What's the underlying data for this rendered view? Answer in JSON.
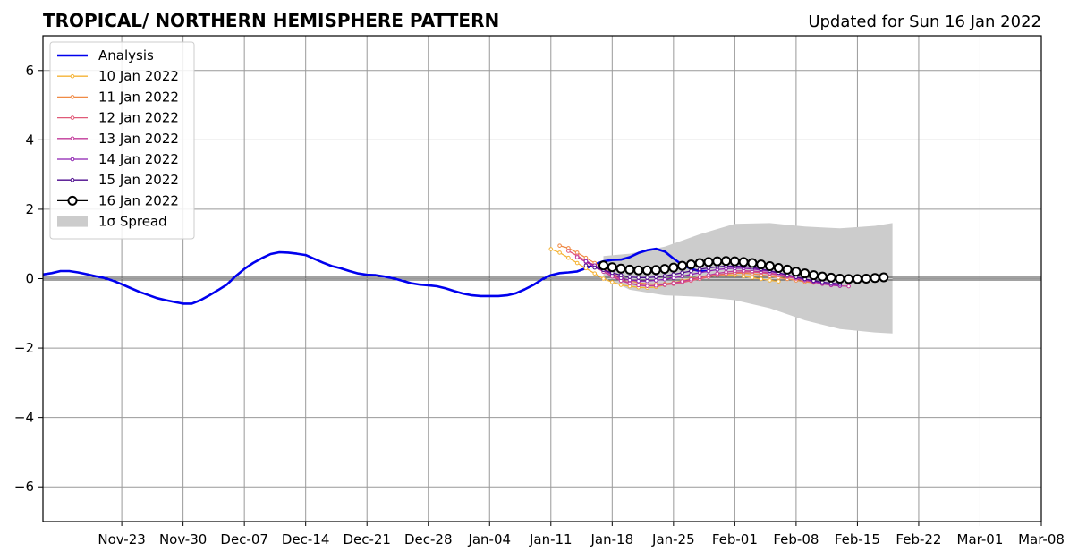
{
  "chart_data": {
    "type": "line",
    "title": "TROPICAL/ NORTHERN HEMISPHERE PATTERN",
    "subtitle": "Updated for Sun 16 Jan 2022",
    "xlabel": "",
    "ylabel": "",
    "xlim": [
      "2022-11-14",
      "2023-03-08"
    ],
    "ylim": [
      -7,
      7
    ],
    "grid": true,
    "legend_position": "top-left",
    "x_ticks": [
      "2022-11-23",
      "2022-11-30",
      "2022-12-07",
      "2022-12-14",
      "2022-12-21",
      "2022-12-28",
      "2023-01-04",
      "2023-01-11",
      "2023-01-18",
      "2023-01-25",
      "2023-02-01",
      "2023-02-08",
      "2023-02-15",
      "2023-02-22",
      "2023-03-01",
      "2023-03-08"
    ],
    "x_tick_labels": [
      "Nov-23",
      "Nov-30",
      "Dec-07",
      "Dec-14",
      "Dec-21",
      "Dec-28",
      "Jan-04",
      "Jan-11",
      "Jan-18",
      "Jan-25",
      "Feb-01",
      "Feb-08",
      "Feb-15",
      "Feb-22",
      "Mar-01",
      "Mar-08"
    ],
    "y_ticks": [
      -6,
      -4,
      -2,
      0,
      2,
      4,
      6
    ],
    "y_tick_labels": [
      "−6",
      "−4",
      "−2",
      "0",
      "2",
      "4",
      "6"
    ],
    "analysis": {
      "name": "Analysis",
      "color": "#0000ee",
      "start": "2022-11-14",
      "values": [
        0.12,
        0.16,
        0.22,
        0.22,
        0.18,
        0.13,
        0.07,
        0.02,
        -0.06,
        -0.16,
        -0.27,
        -0.38,
        -0.47,
        -0.56,
        -0.62,
        -0.67,
        -0.72,
        -0.72,
        -0.62,
        -0.48,
        -0.33,
        -0.17,
        0.07,
        0.28,
        0.45,
        0.59,
        0.71,
        0.76,
        0.75,
        0.72,
        0.68,
        0.57,
        0.46,
        0.36,
        0.3,
        0.22,
        0.15,
        0.11,
        0.1,
        0.06,
        0.01,
        -0.06,
        -0.13,
        -0.17,
        -0.19,
        -0.22,
        -0.28,
        -0.36,
        -0.43,
        -0.48,
        -0.5,
        -0.5,
        -0.5,
        -0.48,
        -0.42,
        -0.31,
        -0.18,
        -0.02,
        0.1,
        0.16,
        0.18,
        0.21,
        0.3,
        0.41,
        0.5,
        0.54,
        0.55,
        0.62,
        0.74,
        0.82,
        0.86,
        0.78,
        0.58,
        0.4,
        0.28,
        0.22,
        0.22
      ]
    },
    "spread": {
      "name": "1σ Spread",
      "color": "#cccccc",
      "x": [
        "2023-01-17",
        "2023-01-20",
        "2023-01-24",
        "2023-01-28",
        "2023-02-01",
        "2023-02-05",
        "2023-02-09",
        "2023-02-13",
        "2023-02-17",
        "2023-02-19"
      ],
      "upper": [
        0.65,
        0.72,
        0.92,
        1.28,
        1.58,
        1.6,
        1.5,
        1.45,
        1.52,
        1.6
      ],
      "lower": [
        0.05,
        -0.32,
        -0.48,
        -0.52,
        -0.62,
        -0.85,
        -1.2,
        -1.45,
        -1.55,
        -1.58
      ]
    },
    "series": [
      {
        "name": "10 Jan 2022",
        "color": "#f5b335",
        "start": "2023-01-11",
        "values": [
          0.85,
          0.75,
          0.6,
          0.45,
          0.3,
          0.15,
          0.0,
          -0.1,
          -0.18,
          -0.22,
          -0.25,
          -0.26,
          -0.24,
          -0.18,
          -0.12,
          -0.06,
          0.0,
          0.05,
          0.08,
          0.1,
          0.11,
          0.1,
          0.07,
          0.03,
          -0.01,
          -0.05,
          -0.08
        ]
      },
      {
        "name": "11 Jan 2022",
        "color": "#f08a45",
        "start": "2023-01-12",
        "values": [
          0.95,
          0.88,
          0.75,
          0.6,
          0.45,
          0.3,
          0.15,
          0.03,
          -0.06,
          -0.12,
          -0.15,
          -0.16,
          -0.15,
          -0.12,
          -0.08,
          -0.03,
          0.02,
          0.07,
          0.11,
          0.14,
          0.16,
          0.16,
          0.14,
          0.11,
          0.07,
          0.03,
          -0.01,
          -0.05,
          -0.09,
          -0.12
        ]
      },
      {
        "name": "12 Jan 2022",
        "color": "#e05a78",
        "start": "2023-01-13",
        "values": [
          0.8,
          0.66,
          0.52,
          0.38,
          0.24,
          0.1,
          -0.03,
          -0.12,
          -0.18,
          -0.2,
          -0.2,
          -0.18,
          -0.15,
          -0.11,
          -0.06,
          -0.01,
          0.05,
          0.1,
          0.14,
          0.17,
          0.19,
          0.19,
          0.17,
          0.14,
          0.1,
          0.05,
          0.0,
          -0.05,
          -0.1,
          -0.14,
          -0.17,
          -0.19
        ]
      },
      {
        "name": "13 Jan 2022",
        "color": "#c2399a",
        "start": "2023-01-14",
        "values": [
          0.62,
          0.48,
          0.34,
          0.2,
          0.06,
          -0.06,
          -0.14,
          -0.19,
          -0.21,
          -0.2,
          -0.17,
          -0.13,
          -0.08,
          -0.02,
          0.04,
          0.1,
          0.15,
          0.19,
          0.22,
          0.23,
          0.22,
          0.2,
          0.16,
          0.12,
          0.07,
          0.01,
          -0.05,
          -0.1,
          -0.15,
          -0.19,
          -0.21,
          -0.22
        ]
      },
      {
        "name": "14 Jan 2022",
        "color": "#8c1fb0",
        "start": "2023-01-15",
        "values": [
          0.5,
          0.38,
          0.25,
          0.12,
          0.02,
          -0.04,
          -0.07,
          -0.07,
          -0.05,
          -0.02,
          0.02,
          0.07,
          0.12,
          0.17,
          0.22,
          0.26,
          0.29,
          0.3,
          0.3,
          0.28,
          0.25,
          0.21,
          0.16,
          0.1,
          0.04,
          -0.02,
          -0.08,
          -0.13,
          -0.17,
          -0.2
        ]
      },
      {
        "name": "15 Jan 2022",
        "color": "#4b0a8c",
        "start": "2023-01-15",
        "values": [
          0.38,
          0.32,
          0.25,
          0.17,
          0.1,
          0.05,
          0.03,
          0.03,
          0.05,
          0.08,
          0.12,
          0.17,
          0.22,
          0.27,
          0.31,
          0.34,
          0.36,
          0.36,
          0.35,
          0.32,
          0.28,
          0.23,
          0.17,
          0.11,
          0.05,
          -0.01,
          -0.06,
          -0.1,
          -0.13,
          -0.15
        ]
      },
      {
        "name": "16 Jan 2022",
        "color": "#000000",
        "start": "2023-01-17",
        "values": [
          0.38,
          0.33,
          0.29,
          0.26,
          0.24,
          0.24,
          0.25,
          0.28,
          0.32,
          0.37,
          0.41,
          0.45,
          0.48,
          0.5,
          0.51,
          0.5,
          0.48,
          0.45,
          0.41,
          0.36,
          0.31,
          0.26,
          0.2,
          0.15,
          0.1,
          0.06,
          0.03,
          0.0,
          -0.01,
          -0.01,
          0.0,
          0.02,
          0.04
        ]
      }
    ]
  }
}
